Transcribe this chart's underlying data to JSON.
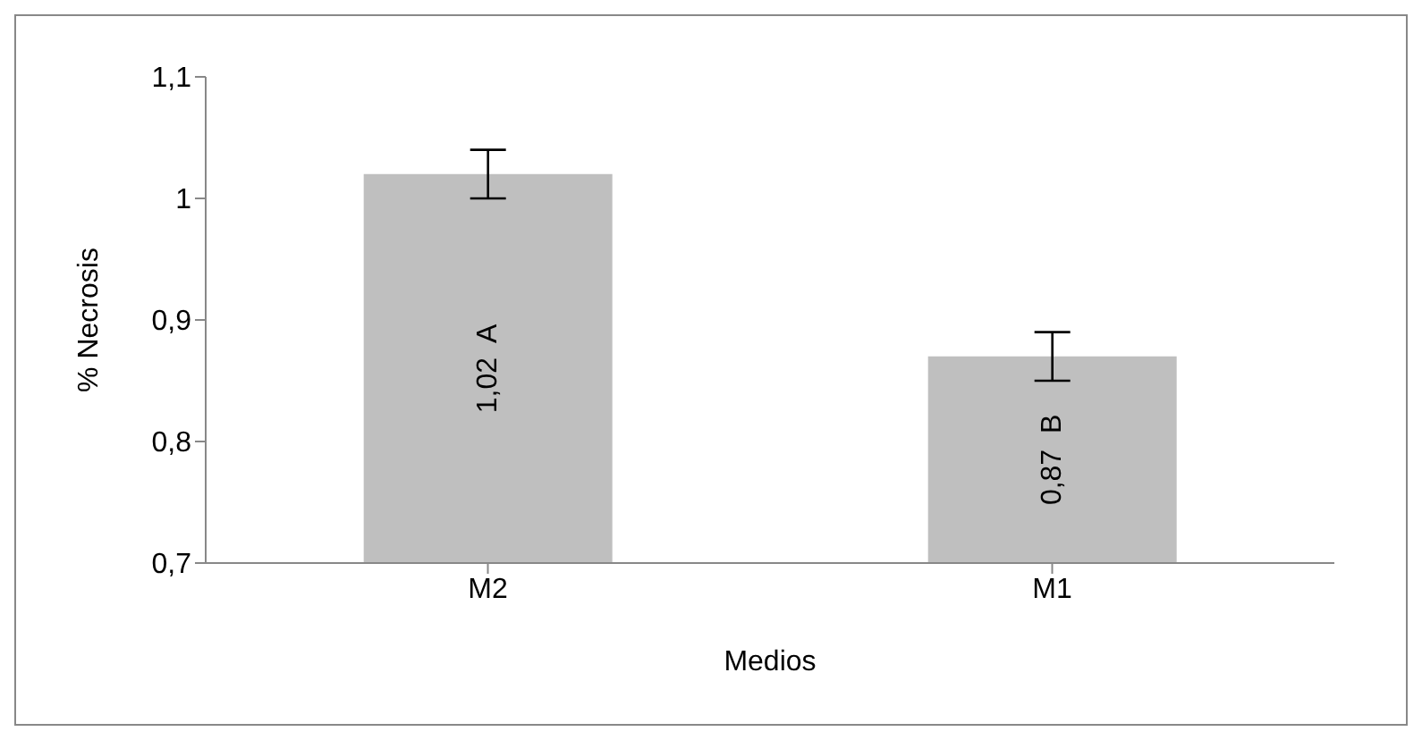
{
  "chart_data": {
    "type": "bar",
    "xlabel": "Medios",
    "ylabel": "% Necrosis",
    "categories": [
      "M2",
      "M1"
    ],
    "values": [
      1.02,
      0.87
    ],
    "errors": [
      0.02,
      0.02
    ],
    "value_labels": [
      "1,02  A",
      "0,87  B"
    ],
    "color": "#bfbfbf",
    "ylim": [
      0.7,
      1.1
    ],
    "yticks": [
      {
        "value": 0.7,
        "label": "0,7"
      },
      {
        "value": 0.8,
        "label": "0,8"
      },
      {
        "value": 0.9,
        "label": "0,9"
      },
      1,
      {
        "value": 1.1,
        "label": "1,1"
      }
    ],
    "grid": false
  }
}
